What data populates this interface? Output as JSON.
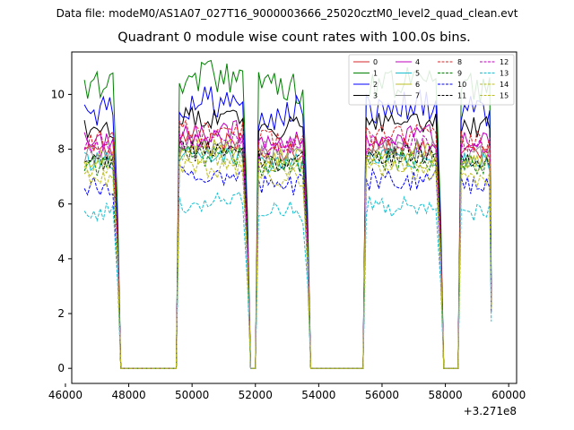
{
  "suptitle": "Data file: modeM0/AS1A07_027T16_9000003666_25020cztM0_level2_quad_clean.evt",
  "chart_data": {
    "type": "line",
    "title": "Quadrant 0 module wise count rates with 100.0s bins.",
    "xlabel": "",
    "ylabel": "",
    "x_offset_label": "+3.271e8",
    "xlim": [
      46200,
      60250
    ],
    "ylim": [
      -0.55,
      11.55
    ],
    "xticks": [
      46000,
      48000,
      50000,
      52000,
      54000,
      56000,
      58000,
      60000
    ],
    "xtick_labels": [
      "46000",
      "48000",
      "50000",
      "52000",
      "54000",
      "56000",
      "58000",
      "60000"
    ],
    "yticks": [
      0,
      2,
      4,
      6,
      8,
      10
    ],
    "ytick_labels": [
      "0",
      "2",
      "4",
      "6",
      "8",
      "10"
    ],
    "legend_position": "upper right",
    "time_segments": [
      [
        46600,
        47500
      ],
      [
        49600,
        51600
      ],
      [
        52100,
        53500
      ],
      [
        55500,
        57700
      ],
      [
        58500,
        59450
      ]
    ],
    "gap_ends": [
      [
        47900,
        49500
      ],
      [
        51800,
        52000
      ],
      [
        53700,
        55400
      ],
      [
        57900,
        58400
      ]
    ],
    "series": [
      {
        "name": "0",
        "color": "#d62728",
        "style": "solid",
        "level": 7.9
      },
      {
        "name": "1",
        "color": "#008000",
        "style": "solid",
        "level": 10.3
      },
      {
        "name": "2",
        "color": "#0000ff",
        "style": "solid",
        "level": 9.3
      },
      {
        "name": "3",
        "color": "#000000",
        "style": "solid",
        "level": 8.8
      },
      {
        "name": "4",
        "color": "#bf00bf",
        "style": "solid",
        "level": 8.3
      },
      {
        "name": "5",
        "color": "#17becf",
        "style": "solid",
        "level": 7.5
      },
      {
        "name": "6",
        "color": "#bcbd22",
        "style": "solid",
        "level": 7.7
      },
      {
        "name": "7",
        "color": "#8c8c8c",
        "style": "solid",
        "level": 7.8
      },
      {
        "name": "8",
        "color": "#d62728",
        "style": "dashed",
        "level": 8.3
      },
      {
        "name": "9",
        "color": "#008000",
        "style": "dashed",
        "level": 7.4
      },
      {
        "name": "10",
        "color": "#0000ff",
        "style": "dashed",
        "level": 6.7
      },
      {
        "name": "11",
        "color": "#000000",
        "style": "dashed",
        "level": 7.6
      },
      {
        "name": "12",
        "color": "#bf00bf",
        "style": "dashed",
        "level": 8.0
      },
      {
        "name": "13",
        "color": "#17becf",
        "style": "dashed",
        "level": 5.7
      },
      {
        "name": "14",
        "color": "#bcbd22",
        "style": "dashed",
        "level": 7.0
      },
      {
        "name": "15",
        "color": "#bcbd22",
        "style": "dashed",
        "level": 7.4
      }
    ]
  }
}
